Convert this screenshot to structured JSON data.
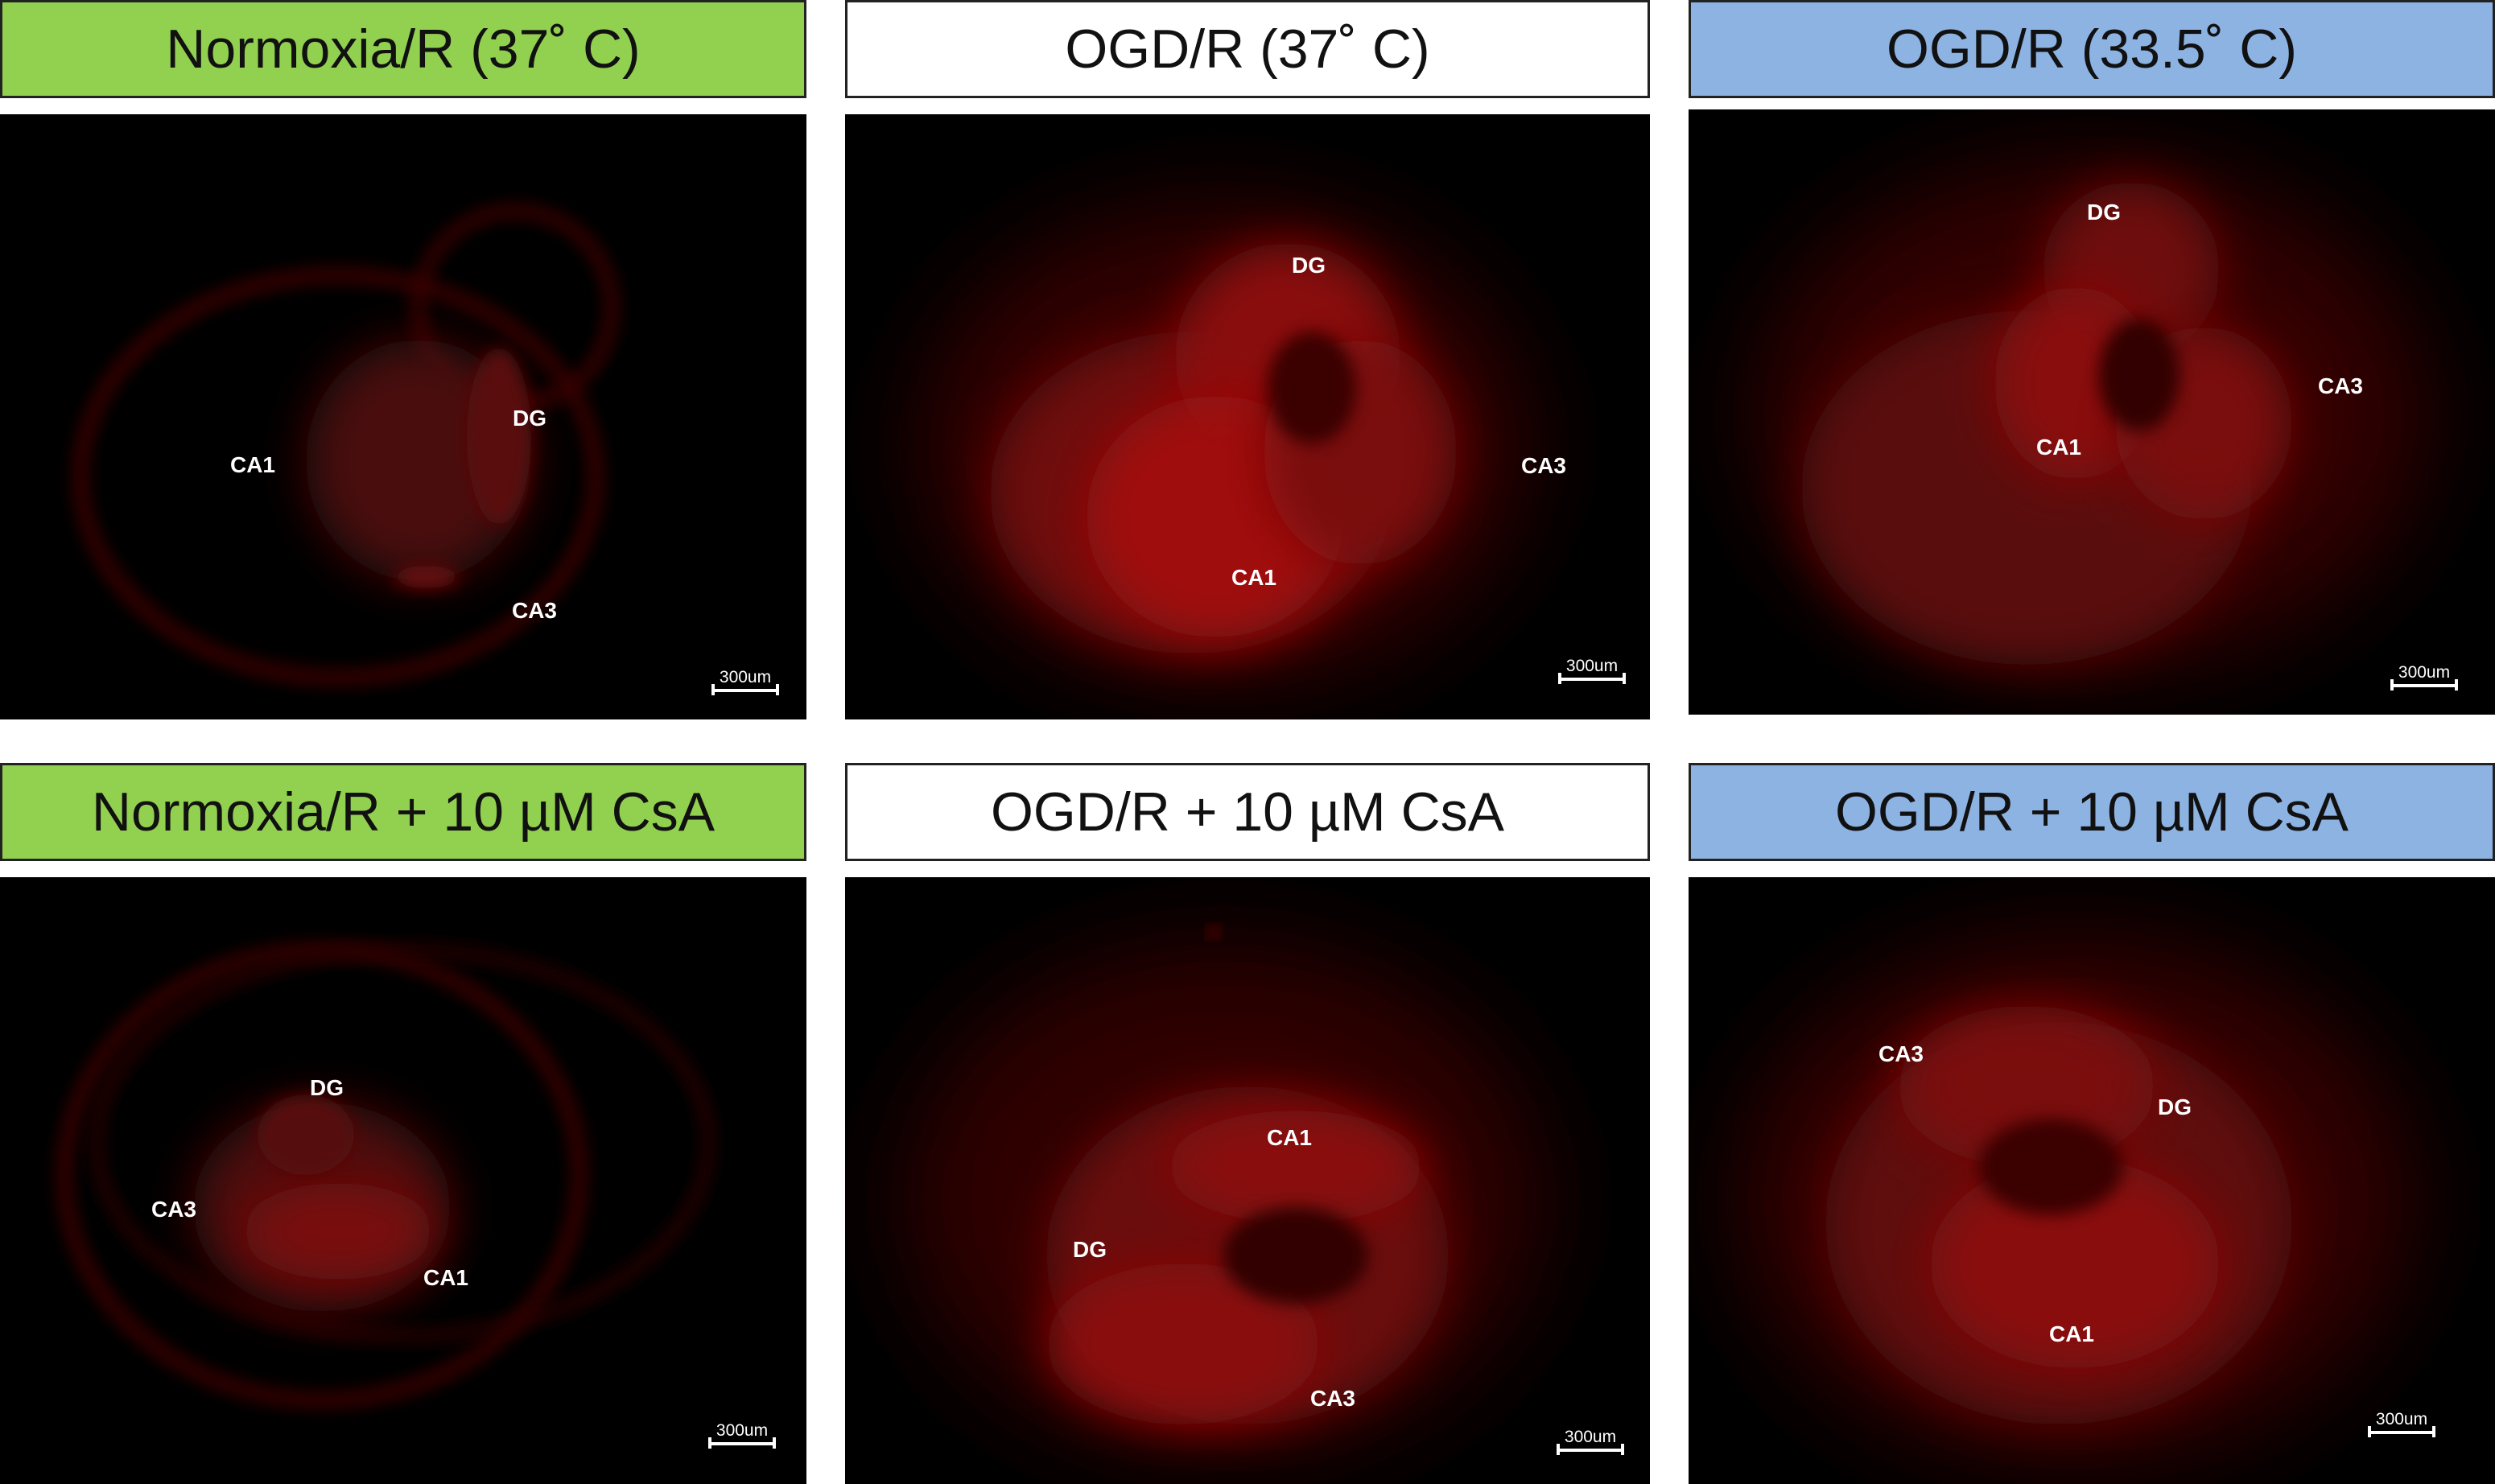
{
  "colors": {
    "green": "#92d050",
    "white": "#ffffff",
    "blue": "#8db3e2",
    "fluor": "#d01010"
  },
  "panels": [
    {
      "header": "Normoxia/R (37˚ C)",
      "header_color": "green",
      "labels": {
        "a": "DG",
        "b": "CA1",
        "c": "CA3"
      },
      "scale": "300um"
    },
    {
      "header": "OGD/R  (37˚ C)",
      "header_color": "white",
      "labels": {
        "a": "DG",
        "b": "CA3",
        "c": "CA1"
      },
      "scale": "300um"
    },
    {
      "header": "OGD/R (33.5˚ C)",
      "header_color": "blue",
      "labels": {
        "a": "DG",
        "b": "CA3",
        "c": "CA1"
      },
      "scale": "300um"
    },
    {
      "header": "Normoxia/R + 10 µM CsA",
      "header_color": "green",
      "labels": {
        "a": "DG",
        "b": "CA3",
        "c": "CA1"
      },
      "scale": "300um"
    },
    {
      "header": "OGD/R + 10 µM CsA",
      "header_color": "white",
      "labels": {
        "a": "CA1",
        "b": "DG",
        "c": "CA3"
      },
      "scale": "300um"
    },
    {
      "header": "OGD/R + 10 µM CsA",
      "header_color": "blue",
      "labels": {
        "a": "CA3",
        "b": "DG",
        "c": "CA1"
      },
      "scale": "300um"
    }
  ]
}
